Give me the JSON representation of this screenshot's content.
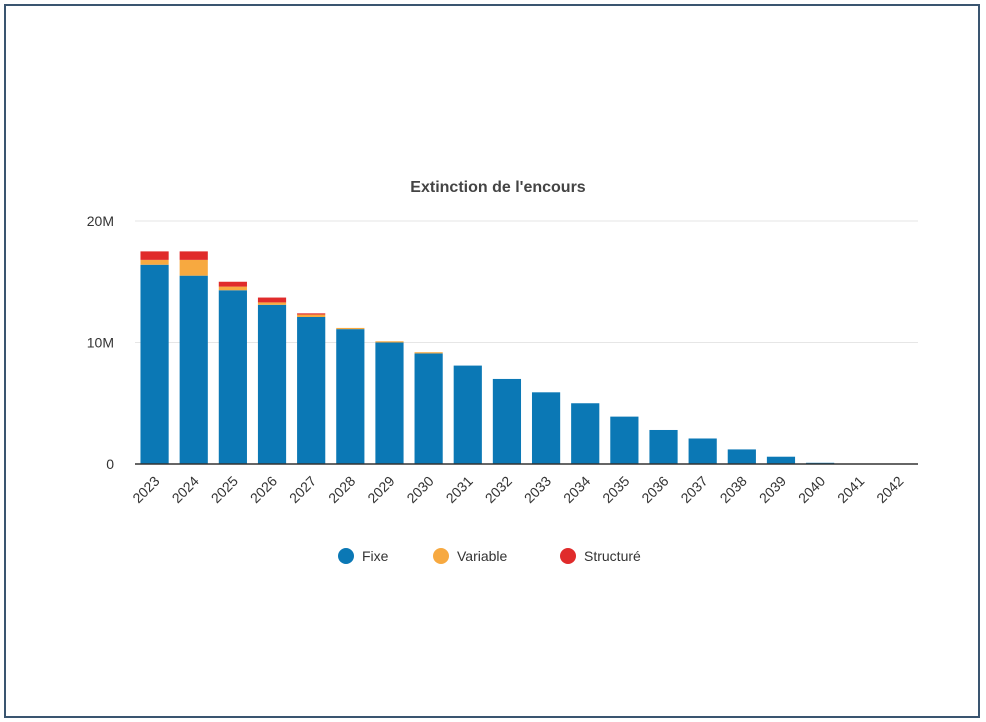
{
  "chart_data": {
    "type": "bar",
    "stacked": true,
    "title": "Extinction de l'encours",
    "xlabel": "",
    "ylabel": "",
    "categories": [
      "2023",
      "2024",
      "2025",
      "2026",
      "2027",
      "2028",
      "2029",
      "2030",
      "2031",
      "2032",
      "2033",
      "2034",
      "2035",
      "2036",
      "2037",
      "2038",
      "2039",
      "2040",
      "2041",
      "2042"
    ],
    "series": [
      {
        "name": "Fixe",
        "color": "#0b78b5",
        "values": [
          16.4,
          15.5,
          14.3,
          13.1,
          12.1,
          11.1,
          10.0,
          9.1,
          8.1,
          7.0,
          5.9,
          5.0,
          3.9,
          2.8,
          2.1,
          1.2,
          0.6,
          0.1,
          0.0,
          0.0
        ]
      },
      {
        "name": "Variable",
        "color": "#f7a940",
        "values": [
          0.4,
          1.3,
          0.3,
          0.2,
          0.2,
          0.1,
          0.1,
          0.1,
          0,
          0,
          0,
          0,
          0,
          0,
          0,
          0,
          0,
          0,
          0,
          0
        ]
      },
      {
        "name": "Structuré",
        "color": "#e02b2b",
        "values": [
          0.7,
          0.7,
          0.4,
          0.4,
          0.1,
          0,
          0,
          0,
          0,
          0,
          0,
          0,
          0,
          0,
          0,
          0,
          0,
          0,
          0,
          0
        ]
      }
    ],
    "y_tick_labels": [
      "0",
      "10M",
      "20M"
    ],
    "y_tick_values": [
      0,
      10,
      20
    ],
    "ylim": [
      0,
      20
    ],
    "units": "M",
    "grid": true,
    "legend_position": "bottom-center",
    "frame_color": "#3a5570"
  }
}
